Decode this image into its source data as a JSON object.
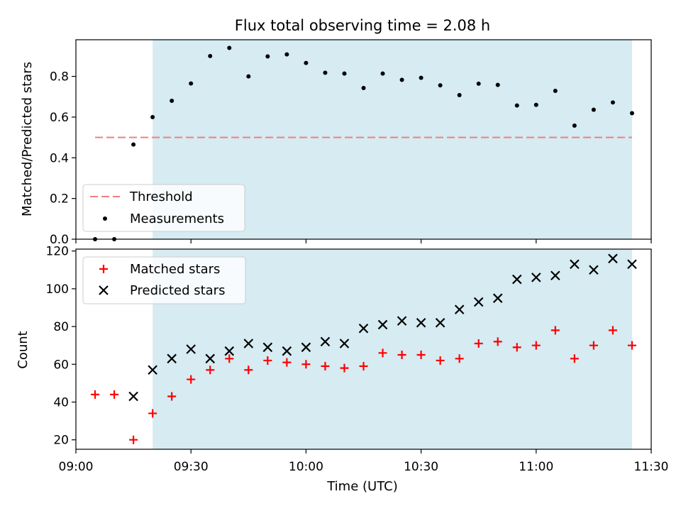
{
  "chart_data": [
    {
      "type": "scatter",
      "title": "Flux total observing time = 2.08 h",
      "xlabel": "",
      "ylabel": "Matched/Predicted stars",
      "xlim": [
        "09:00",
        "11:30"
      ],
      "ylim": [
        0,
        0.98
      ],
      "yticks": [
        0.0,
        0.2,
        0.4,
        0.6,
        0.8
      ],
      "ytick_labels": [
        "0.0",
        "0.2",
        "0.4",
        "0.6",
        "0.8"
      ],
      "shaded_span": [
        "09:20",
        "11:25"
      ],
      "shade_color": "#add8e6",
      "legend_position": "lower-left",
      "threshold": {
        "name": "Threshold",
        "value": 0.5,
        "x_range": [
          "09:05",
          "11:25"
        ],
        "color": "#f08080"
      },
      "series": [
        {
          "name": "Measurements",
          "marker": "dot",
          "color": "#000000",
          "x": [
            "09:05",
            "09:10",
            "09:15",
            "09:20",
            "09:25",
            "09:30",
            "09:35",
            "09:40",
            "09:45",
            "09:50",
            "09:55",
            "10:00",
            "10:05",
            "10:10",
            "10:15",
            "10:20",
            "10:25",
            "10:30",
            "10:35",
            "10:40",
            "10:45",
            "10:50",
            "10:55",
            "11:00",
            "11:05",
            "11:10",
            "11:15",
            "11:20",
            "11:25"
          ],
          "values": [
            0.0,
            0.0,
            0.465,
            0.6,
            0.68,
            0.765,
            0.9,
            0.94,
            0.8,
            0.898,
            0.908,
            0.866,
            0.818,
            0.814,
            0.743,
            0.814,
            0.783,
            0.793,
            0.756,
            0.708,
            0.764,
            0.758,
            0.657,
            0.66,
            0.729,
            0.558,
            0.636,
            0.672,
            0.619
          ]
        }
      ]
    },
    {
      "type": "scatter",
      "title": "",
      "xlabel": "Time (UTC)",
      "ylabel": "Count",
      "xlim": [
        "09:00",
        "11:30"
      ],
      "ylim": [
        15,
        121
      ],
      "xticks": [
        "09:00",
        "09:30",
        "10:00",
        "10:30",
        "11:00",
        "11:30"
      ],
      "xtick_labels": [
        "09:00",
        "09:30",
        "10:00",
        "10:30",
        "11:00",
        "11:30"
      ],
      "yticks": [
        20,
        40,
        60,
        80,
        100,
        120
      ],
      "ytick_labels": [
        "20",
        "40",
        "60",
        "80",
        "100",
        "120"
      ],
      "shaded_span": [
        "09:20",
        "11:25"
      ],
      "shade_color": "#add8e6",
      "legend_position": "upper-left",
      "series": [
        {
          "name": "Matched stars",
          "marker": "plus",
          "color": "#ff0000",
          "x": [
            "09:05",
            "09:10",
            "09:15",
            "09:20",
            "09:25",
            "09:30",
            "09:35",
            "09:40",
            "09:45",
            "09:50",
            "09:55",
            "10:00",
            "10:05",
            "10:10",
            "10:15",
            "10:20",
            "10:25",
            "10:30",
            "10:35",
            "10:40",
            "10:45",
            "10:50",
            "10:55",
            "11:00",
            "11:05",
            "11:10",
            "11:15",
            "11:20",
            "11:25"
          ],
          "values": [
            44,
            44,
            20,
            34,
            43,
            52,
            57,
            63,
            57,
            62,
            61,
            60,
            59,
            58,
            59,
            66,
            65,
            65,
            62,
            63,
            71,
            72,
            69,
            70,
            78,
            63,
            70,
            78,
            70
          ]
        },
        {
          "name": "Predicted stars",
          "marker": "x",
          "color": "#000000",
          "x": [
            "09:15",
            "09:20",
            "09:25",
            "09:30",
            "09:35",
            "09:40",
            "09:45",
            "09:50",
            "09:55",
            "10:00",
            "10:05",
            "10:10",
            "10:15",
            "10:20",
            "10:25",
            "10:30",
            "10:35",
            "10:40",
            "10:45",
            "10:50",
            "10:55",
            "11:00",
            "11:05",
            "11:10",
            "11:15",
            "11:20",
            "11:25"
          ],
          "values": [
            43,
            57,
            63,
            68,
            63,
            67,
            71,
            69,
            67,
            69,
            72,
            71,
            79,
            81,
            83,
            82,
            82,
            89,
            93,
            95,
            105,
            106,
            107,
            113,
            110,
            116,
            113
          ]
        }
      ]
    }
  ]
}
